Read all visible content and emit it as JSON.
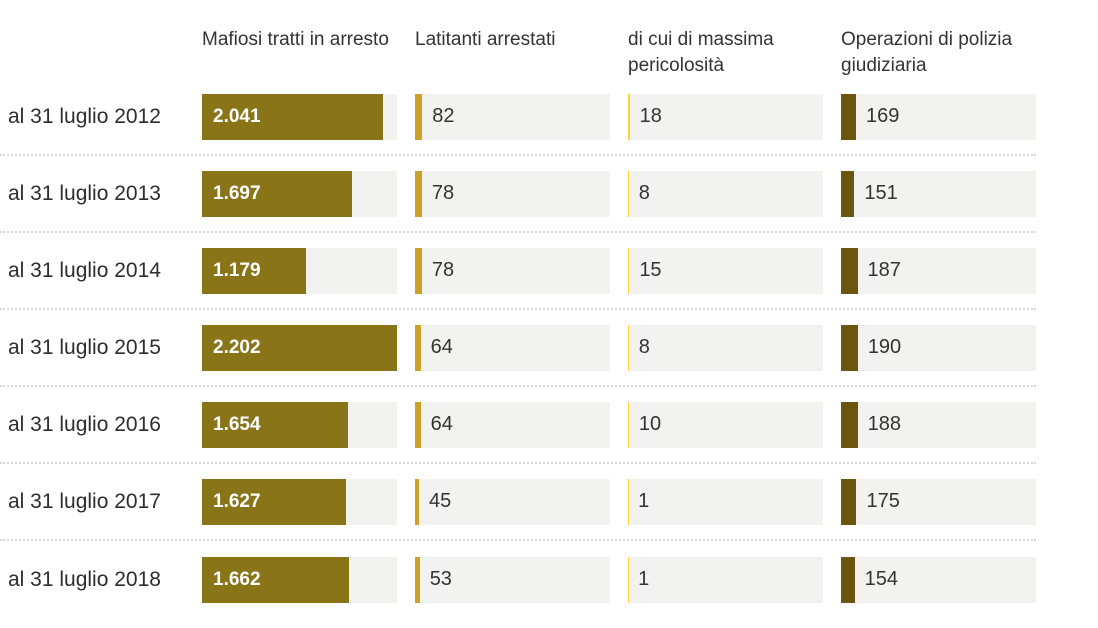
{
  "chart_data": {
    "type": "bar",
    "orientation": "horizontal",
    "title": "",
    "categories": [
      "al 31 luglio 2012",
      "al 31 luglio 2013",
      "al 31 luglio 2014",
      "al 31 luglio 2015",
      "al 31 luglio 2016",
      "al 31 luglio 2017",
      "al 31 luglio 2018"
    ],
    "series": [
      {
        "name": "Mafiosi tratti in arresto",
        "color": "#8a7418",
        "values": [
          2041,
          1697,
          1179,
          2202,
          1654,
          1627,
          1662
        ],
        "labels": [
          "2.041",
          "1.697",
          "1.179",
          "2.202",
          "1.654",
          "1.627",
          "1.662"
        ]
      },
      {
        "name": "Latitanti arrestati",
        "color": "#c9a227",
        "values": [
          82,
          78,
          78,
          64,
          64,
          45,
          53
        ],
        "labels": [
          "82",
          "78",
          "78",
          "64",
          "64",
          "45",
          "53"
        ]
      },
      {
        "name": "di cui di massima pericolosità",
        "color": "#fdd335",
        "values": [
          18,
          8,
          15,
          8,
          10,
          1,
          1
        ],
        "labels": [
          "18",
          "8",
          "15",
          "8",
          "10",
          "1",
          "1"
        ]
      },
      {
        "name": "Operazioni di polizia giudiziaria",
        "color": "#6b550f",
        "values": [
          169,
          151,
          187,
          190,
          188,
          175,
          154
        ],
        "labels": [
          "169",
          "151",
          "187",
          "190",
          "188",
          "175",
          "154"
        ]
      }
    ],
    "scale_max": 2202,
    "track_color": "#f2f2f0",
    "grid": false,
    "legend_position": "top-as-column-headers"
  },
  "columns": [
    {
      "label": "Mafiosi tratti in arresto"
    },
    {
      "label": "Latitanti arrestati"
    },
    {
      "label": "di cui di massima pericolosità"
    },
    {
      "label": "Operazioni di polizia giudiziaria"
    }
  ],
  "rows": [
    {
      "label": "al 31 luglio 2012",
      "cells": [
        {
          "display": "2.041",
          "value": 2041
        },
        {
          "display": "82",
          "value": 82
        },
        {
          "display": "18",
          "value": 18
        },
        {
          "display": "169",
          "value": 169
        }
      ]
    },
    {
      "label": "al 31 luglio 2013",
      "cells": [
        {
          "display": "1.697",
          "value": 1697
        },
        {
          "display": "78",
          "value": 78
        },
        {
          "display": "8",
          "value": 8
        },
        {
          "display": "151",
          "value": 151
        }
      ]
    },
    {
      "label": "al 31 luglio 2014",
      "cells": [
        {
          "display": "1.179",
          "value": 1179
        },
        {
          "display": "78",
          "value": 78
        },
        {
          "display": "15",
          "value": 15
        },
        {
          "display": "187",
          "value": 187
        }
      ]
    },
    {
      "label": "al 31 luglio 2015",
      "cells": [
        {
          "display": "2.202",
          "value": 2202
        },
        {
          "display": "64",
          "value": 64
        },
        {
          "display": "8",
          "value": 8
        },
        {
          "display": "190",
          "value": 190
        }
      ]
    },
    {
      "label": "al 31 luglio 2016",
      "cells": [
        {
          "display": "1.654",
          "value": 1654
        },
        {
          "display": "64",
          "value": 64
        },
        {
          "display": "10",
          "value": 10
        },
        {
          "display": "188",
          "value": 188
        }
      ]
    },
    {
      "label": "al 31 luglio 2017",
      "cells": [
        {
          "display": "1.627",
          "value": 1627
        },
        {
          "display": "45",
          "value": 45
        },
        {
          "display": "1",
          "value": 1
        },
        {
          "display": "175",
          "value": 175
        }
      ]
    },
    {
      "label": "al 31 luglio 2018",
      "cells": [
        {
          "display": "1.662",
          "value": 1662
        },
        {
          "display": "53",
          "value": 53
        },
        {
          "display": "1",
          "value": 1
        },
        {
          "display": "154",
          "value": 154
        }
      ]
    }
  ]
}
